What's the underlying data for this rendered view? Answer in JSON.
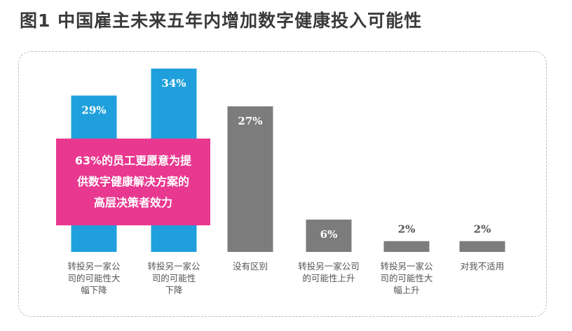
{
  "title": "图1  中国雇主未来五年内增加数字健康投入可能性",
  "callout": {
    "lines": [
      "63%的员工更愿意为提",
      "供数字健康解决方案的",
      "高层决策者效力"
    ]
  },
  "colors": {
    "highlight": "#1fa0dc",
    "neutral": "#7c7c7c",
    "callout": "#e8388f",
    "value_on_highlight": "#ffffff",
    "value_on_neutral": "#ffffff",
    "value_small": "#555555"
  },
  "chart_data": {
    "type": "bar",
    "categories": [
      [
        "转投另一家公",
        "司的可能性大",
        "幅下降"
      ],
      [
        "转投另一家公",
        "司的可能性",
        "下降"
      ],
      [
        "没有区别"
      ],
      [
        "转投另一家公司",
        "的可能性上升"
      ],
      [
        "转投另一家公",
        "司的可能性大",
        "幅上升"
      ],
      [
        "对我不适用"
      ]
    ],
    "values": [
      29,
      34,
      27,
      6,
      2,
      2
    ],
    "labels": [
      "29%",
      "34%",
      "27%",
      "6%",
      "2%",
      "2%"
    ],
    "highlight_indices": [
      0,
      1
    ],
    "ylim": [
      0,
      34
    ],
    "title": "",
    "xlabel": "",
    "ylabel": ""
  }
}
